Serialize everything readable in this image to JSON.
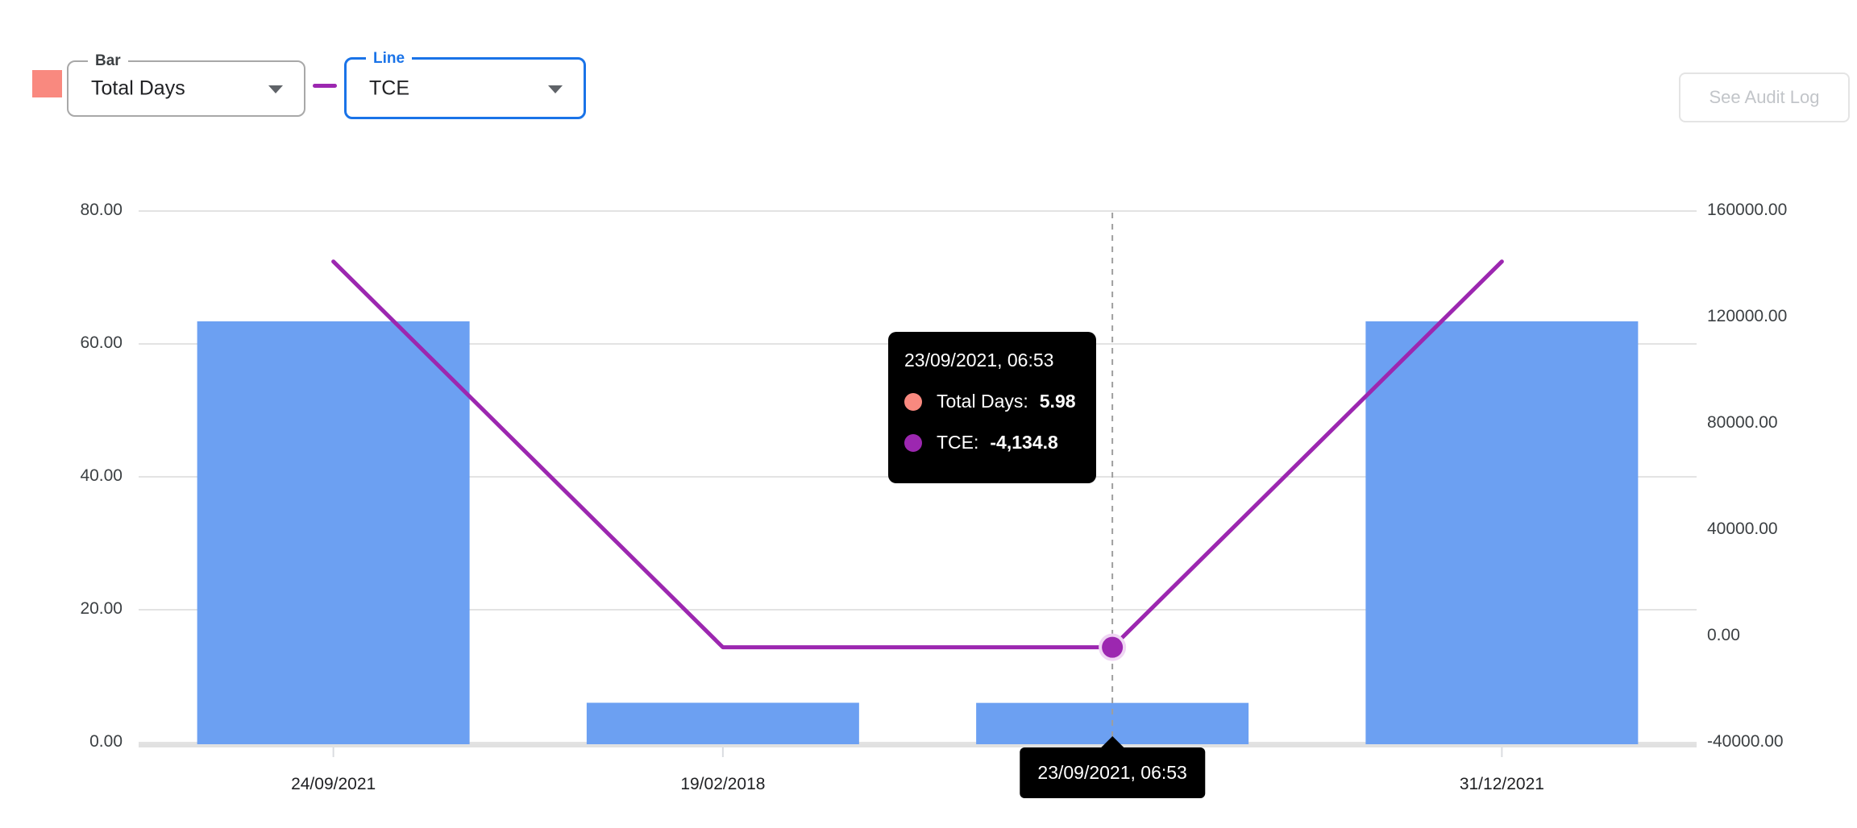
{
  "controls": {
    "bar_selector": {
      "label": "Bar",
      "value": "Total Days"
    },
    "line_selector": {
      "label": "Line",
      "value": "TCE"
    },
    "audit_button_label": "See Audit Log"
  },
  "colors": {
    "bar": "#6CA0F2",
    "line": "#9C27B0",
    "bar_legend": "#F9897F",
    "accent_blue": "#1A73E8",
    "grid": "#E3E3E3",
    "axis_line": "#E1E1E1",
    "dashed_guide": "#9E9E9E",
    "x_tick": "#DADCE0"
  },
  "tooltip": {
    "title": "23/09/2021, 06:53",
    "rows": [
      {
        "label": "Total Days:",
        "value": "5.98",
        "color": "#F9897F"
      },
      {
        "label": "TCE:",
        "value": "-4,134.8",
        "color": "#9C27B0"
      }
    ]
  },
  "x_axis_tooltip": {
    "label": "23/09/2021, 06:53"
  },
  "chart_data": {
    "type": "combo",
    "categories": [
      "24/09/2021",
      "19/02/2018",
      "23/09/2021, 06:53",
      "31/12/2021"
    ],
    "series": [
      {
        "name": "Total Days",
        "type": "bar",
        "axis": "left",
        "color": "#6CA0F2",
        "values": [
          63.4,
          6.0,
          5.98,
          63.4
        ]
      },
      {
        "name": "TCE",
        "type": "line",
        "axis": "right",
        "color": "#9C27B0",
        "values": [
          141000,
          -4134.8,
          -4134.8,
          141000
        ]
      }
    ],
    "left_axis": {
      "min": 0,
      "max": 80,
      "ticks": [
        "80.00",
        "60.00",
        "40.00",
        "20.00",
        "0.00"
      ]
    },
    "right_axis": {
      "min": -40000,
      "max": 160000,
      "ticks": [
        "160000.00",
        "120000.00",
        "80000.00",
        "40000.00",
        "0.00",
        "-40000.00"
      ]
    },
    "highlight_index": 2,
    "grid": true,
    "legend_position": "top-left"
  }
}
